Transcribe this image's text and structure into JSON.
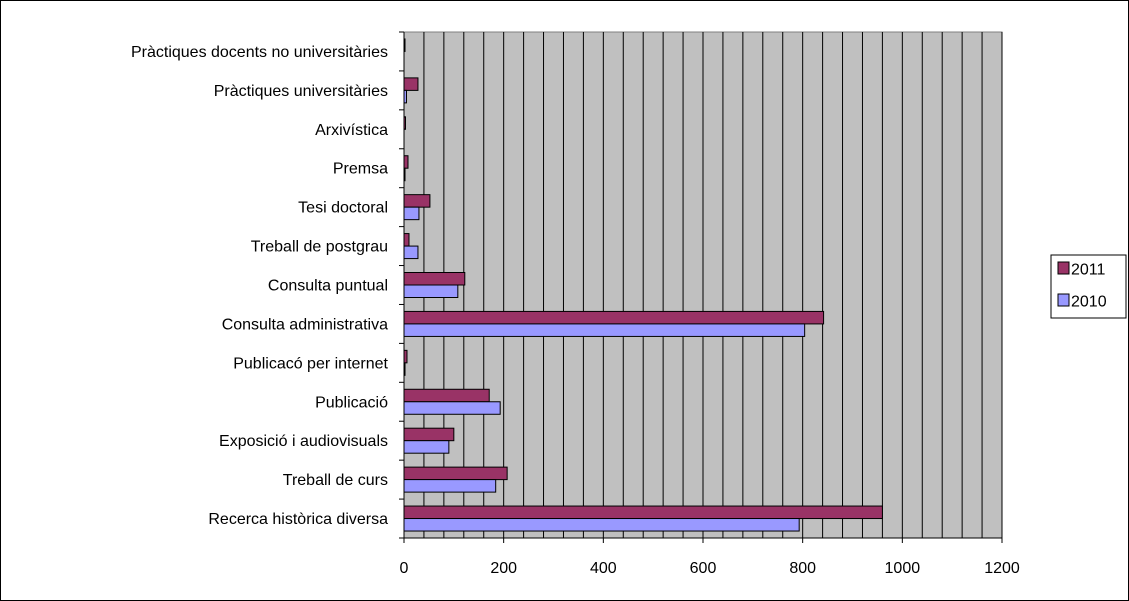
{
  "chart_data": {
    "type": "bar",
    "orientation": "horizontal",
    "categories": [
      "Recerca històrica diversa",
      "Treball de curs",
      "Exposició i audiovisuals",
      "Publicació",
      "Publicacó per internet",
      "Consulta administrativa",
      "Consulta puntual",
      "Treball de postgrau",
      "Tesi doctoral",
      "Premsa",
      "Arxivística",
      "Pràctiques universitàries",
      "Pràctiques docents  no universitàries"
    ],
    "series": [
      {
        "name": "2011",
        "color": "#993366",
        "values": [
          960,
          207,
          100,
          171,
          6,
          842,
          122,
          10,
          52,
          8,
          3,
          28,
          2
        ]
      },
      {
        "name": "2010",
        "color": "#9999ff",
        "values": [
          793,
          184,
          90,
          193,
          2,
          804,
          108,
          28,
          30,
          2,
          0,
          5,
          0
        ]
      }
    ],
    "xlim": [
      0,
      1200
    ],
    "x_ticks": [
      "0",
      "200",
      "400",
      "600",
      "800",
      "1000",
      "1200"
    ],
    "minor_grid_step": 40,
    "plot_background": "#c0c0c0",
    "grid": true,
    "legend_position": "right",
    "title": "",
    "xlabel": "",
    "ylabel": ""
  }
}
